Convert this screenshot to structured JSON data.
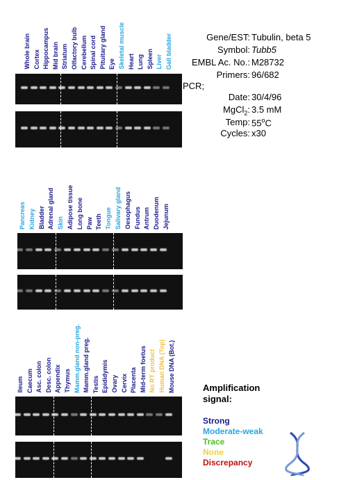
{
  "sections": [
    {
      "lanes": [
        {
          "label": "Whole brain",
          "color": "#1a1a8c"
        },
        {
          "label": "Cortex",
          "color": "#1a1a8c"
        },
        {
          "label": "Hippocampus",
          "color": "#1a1a8c"
        },
        {
          "label": "Mid brain",
          "color": "#1a1a8c"
        },
        {
          "label": "Striatum",
          "color": "#1a1a8c"
        },
        {
          "label": "Olfactory bulb",
          "color": "#1a1a8c"
        },
        {
          "label": "Cerebellum",
          "color": "#1a1a8c"
        },
        {
          "label": "Spinal cord",
          "color": "#1a1a8c"
        },
        {
          "label": "Pituitary gland",
          "color": "#1a1a8c"
        },
        {
          "label": "Eye",
          "color": "#1a1a8c"
        },
        {
          "label": "Skeletal muscle",
          "color": "#2aa6e0"
        },
        {
          "label": "Heart",
          "color": "#1a1a8c"
        },
        {
          "label": "Lung",
          "color": "#1a1a8c"
        },
        {
          "label": "Spleen",
          "color": "#1a1a8c"
        },
        {
          "label": "Liver",
          "color": "#2aa6e0"
        },
        {
          "label": "Gall bladder",
          "color": "#2aa6e0"
        }
      ]
    },
    {
      "lanes": [
        {
          "label": "Pancreas",
          "color": "#2aa6e0"
        },
        {
          "label": "Kidney",
          "color": "#2aa6e0"
        },
        {
          "label": "Bladder",
          "color": "#1a1a8c"
        },
        {
          "label": "Adrenal gland",
          "color": "#1a1a8c"
        },
        {
          "label": "Skin",
          "color": "#2aa6e0"
        },
        {
          "label": "Adipose tissue",
          "color": "#1a1a8c"
        },
        {
          "label": "Long bone",
          "color": "#1a1a8c"
        },
        {
          "label": "Paw",
          "color": "#1a1a8c"
        },
        {
          "label": "Teeth",
          "color": "#1a1a8c"
        },
        {
          "label": "Tongue",
          "color": "#2aa6e0"
        },
        {
          "label": "Salivary gland",
          "color": "#2aa6e0"
        },
        {
          "label": "Oesophagus",
          "color": "#1a1a8c"
        },
        {
          "label": "Fundus",
          "color": "#1a1a8c"
        },
        {
          "label": "Antrum",
          "color": "#1a1a8c"
        },
        {
          "label": "Duodenum",
          "color": "#1a1a8c"
        },
        {
          "label": "Jejunum",
          "color": "#1a1a8c"
        }
      ]
    },
    {
      "lanes": [
        {
          "label": "Ileum",
          "color": "#1a1a8c"
        },
        {
          "label": "Caecum",
          "color": "#1a1a8c"
        },
        {
          "label": "Asc. colon",
          "color": "#1a1a8c"
        },
        {
          "label": "Desc. colon",
          "color": "#1a1a8c"
        },
        {
          "label": "Appendix",
          "color": "#1a1a8c"
        },
        {
          "label": "Thymus",
          "color": "#1a1a8c"
        },
        {
          "label": "Mamm.gland non-preg.",
          "color": "#2aa6e0"
        },
        {
          "label": "Mamm.gland preg.",
          "color": "#1a1a8c"
        },
        {
          "label": "Testis",
          "color": "#1a1a8c"
        },
        {
          "label": "Epididymis",
          "color": "#1a1a8c"
        },
        {
          "label": "Ovary",
          "color": "#1a1a8c"
        },
        {
          "label": "Cervix",
          "color": "#1a1a8c"
        },
        {
          "label": "Placenta",
          "color": "#1a1a8c"
        },
        {
          "label": "Mid-term foetus",
          "color": "#1a1a8c"
        },
        {
          "label": "No RT product",
          "color": "#f0c040"
        },
        {
          "label": "Human DNA (Top)",
          "color": "#f0c040"
        },
        {
          "label": "Mouse DNA (Bot.)",
          "color": "#1a1a8c"
        }
      ]
    }
  ],
  "info": {
    "gene_label": "Gene/EST:",
    "gene": "Tubulin, beta 5",
    "symbol_label": "Symbol:",
    "symbol": "Tubb5",
    "embl_label": "EMBL Ac. No.:",
    "embl": "M28732",
    "primers_label": "Primers:",
    "primers": "96/682",
    "pcr": "PCR;",
    "date_label": "Date:",
    "date": "30/4/96",
    "mg_label": "MgCl",
    "mg_sub": "2",
    "mg_colon": ":",
    "mg": "3.5 mM",
    "temp_label": "Temp:",
    "temp": "55",
    "temp_sup": "o",
    "temp_unit": "C",
    "cycles_label": "Cycles:",
    "cycles": "x30"
  },
  "legend": {
    "title": "Amplification signal:",
    "items": [
      {
        "label": "Strong",
        "color": "#1a1a8c"
      },
      {
        "label": "Moderate-weak",
        "color": "#2aa6e0"
      },
      {
        "label": "Trace",
        "color": "#4cc020"
      },
      {
        "label": "None",
        "color": "#f0d040"
      },
      {
        "label": "Discrepancy",
        "color": "#c01010"
      }
    ]
  }
}
